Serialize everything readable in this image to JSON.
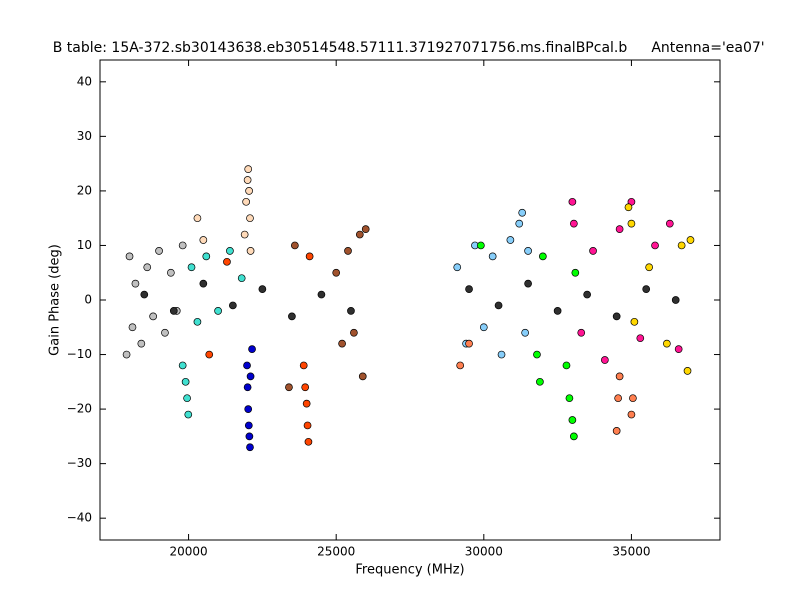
{
  "chart_data": {
    "type": "scatter",
    "title": "B table: 15A-372.sb30143638.eb30514548.57111.371927071756.ms.finalBPcal.b",
    "subtitle": "Antenna='ea07'",
    "x_label": "Frequency (MHz)",
    "y_label": "Gain Phase (deg)",
    "xlim": [
      17000,
      38000
    ],
    "ylim": [
      -44,
      44
    ],
    "xticks": [
      20000,
      25000,
      30000,
      35000
    ],
    "yticks": [
      {
        "value": -40,
        "label": "−40"
      },
      {
        "value": -30,
        "label": "−30"
      },
      {
        "value": -20,
        "label": "−20"
      },
      {
        "value": -10,
        "label": "−10"
      },
      0,
      10,
      20,
      30,
      40
    ],
    "grid": false,
    "series": [
      {
        "color": "#c0c0c0",
        "x": [
          17900,
          18000,
          18100,
          18200,
          18400,
          18600,
          18800,
          19000,
          19200,
          19400,
          19600,
          19800
        ],
        "values": [
          -10,
          8,
          -5,
          3,
          -8,
          6,
          -3,
          9,
          -6,
          5,
          -2,
          10
        ]
      },
      {
        "color": "#40e0d0",
        "x": [
          19800,
          19900,
          19950,
          19990,
          20100,
          20300,
          20600,
          21000,
          21400,
          21800
        ],
        "values": [
          -12,
          -15,
          -18,
          -21,
          6,
          -4,
          8,
          -2,
          9,
          4
        ]
      },
      {
        "color": "#ffdab9",
        "x": [
          21900,
          21950,
          22000,
          22020,
          22050,
          22080,
          22100,
          20300,
          20500
        ],
        "values": [
          12,
          18,
          22,
          24,
          20,
          15,
          9,
          15,
          11
        ]
      },
      {
        "color": "#0000cd",
        "x": [
          21980,
          22000,
          22020,
          22040,
          22060,
          22080,
          22100,
          22150
        ],
        "values": [
          -12,
          -16,
          -20,
          -23,
          -25,
          -27,
          -14,
          -9
        ]
      },
      {
        "color": "#ff4500",
        "x": [
          23900,
          23950,
          24000,
          24030,
          24060,
          24100,
          21300,
          20700
        ],
        "values": [
          -12,
          -16,
          -19,
          -23,
          -26,
          8,
          7,
          -10
        ]
      },
      {
        "color": "#a0522d",
        "x": [
          25000,
          25200,
          25400,
          25600,
          25800,
          25900,
          26000,
          23400,
          23600
        ],
        "values": [
          5,
          -8,
          9,
          -6,
          12,
          -14,
          13,
          -16,
          10
        ]
      },
      {
        "color": "#87cefa",
        "x": [
          29100,
          29400,
          29700,
          30000,
          30300,
          30600,
          30900,
          31200,
          31300,
          31400,
          31500
        ],
        "values": [
          6,
          -8,
          10,
          -5,
          8,
          -10,
          11,
          14,
          16,
          -6,
          9
        ]
      },
      {
        "color": "#00ff00",
        "x": [
          31800,
          31900,
          32000,
          32800,
          32900,
          33000,
          33050,
          33100,
          29900
        ],
        "values": [
          -10,
          -15,
          8,
          -12,
          -18,
          -22,
          -25,
          5,
          10
        ]
      },
      {
        "color": "#ff1493",
        "x": [
          33000,
          33050,
          33300,
          33700,
          34100,
          34600,
          35000,
          35300,
          35800,
          36300,
          36600
        ],
        "values": [
          18,
          14,
          -6,
          9,
          -11,
          13,
          18,
          -7,
          10,
          14,
          -9
        ]
      },
      {
        "color": "#ffd700",
        "x": [
          34900,
          35000,
          35100,
          35600,
          36200,
          36700,
          36900,
          37000
        ],
        "values": [
          17,
          14,
          -4,
          6,
          -8,
          10,
          -13,
          11
        ]
      },
      {
        "color": "#ff7f50",
        "x": [
          34500,
          34550,
          34600,
          35000,
          35050,
          29200,
          29500
        ],
        "values": [
          -24,
          -18,
          -14,
          -21,
          -18,
          -12,
          -8
        ]
      },
      {
        "color": "#2f2f2f",
        "x": [
          18500,
          19500,
          20500,
          21500,
          22500,
          23500,
          24500,
          25500,
          29500,
          30500,
          31500,
          32500,
          33500,
          34500,
          35500,
          36500
        ],
        "values": [
          1,
          -2,
          3,
          -1,
          2,
          -3,
          1,
          -2,
          2,
          -1,
          3,
          -2,
          1,
          -3,
          2,
          0
        ]
      }
    ]
  }
}
